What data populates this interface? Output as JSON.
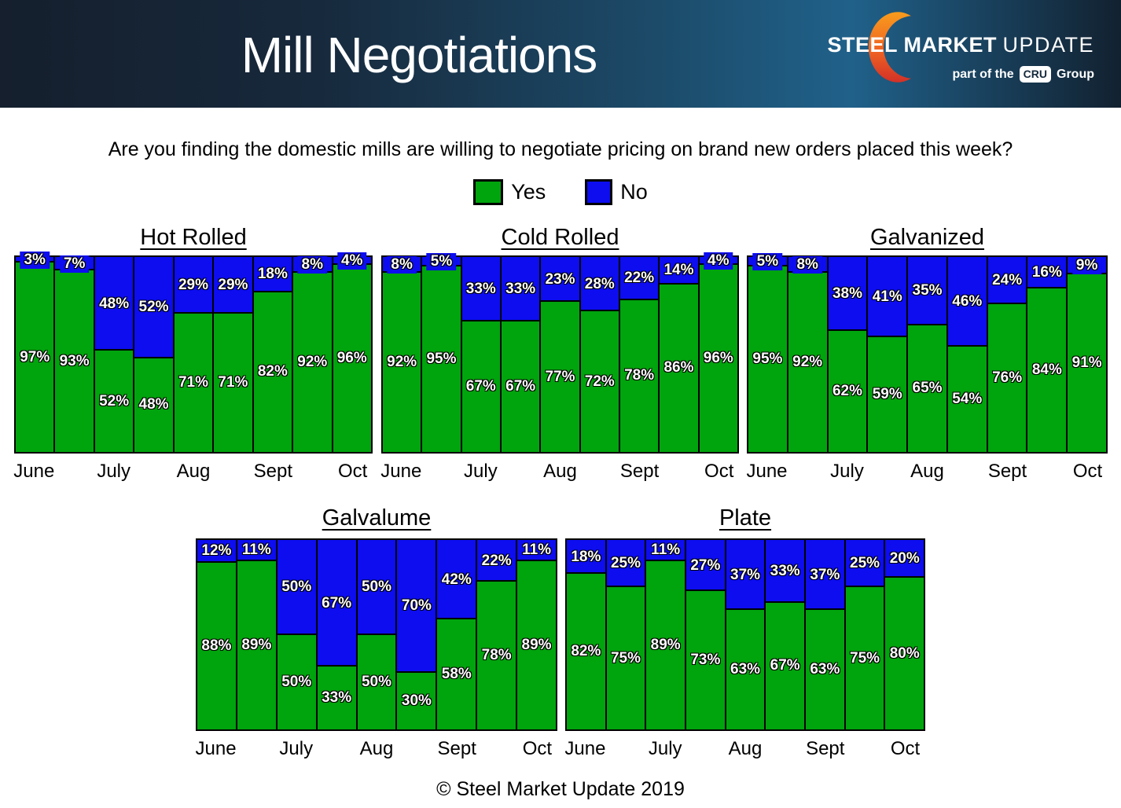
{
  "header": {
    "title": "Mill Negotiations",
    "logo": {
      "name_bold": "STEEL MARKET",
      "name_light": "UPDATE",
      "tagline_pre": "part of the",
      "tagline_badge": "CRU",
      "tagline_post": "Group"
    }
  },
  "question": "Are you finding the domestic mills are willing to negotiate pricing on brand new orders placed this week?",
  "legend": [
    {
      "label": "Yes",
      "color": "#00a40d"
    },
    {
      "label": "No",
      "color": "#0d0df0"
    }
  ],
  "colors": {
    "yes": "#00a40d",
    "no": "#0d0df0",
    "bar_border": "#000000",
    "label_text": "#ffffff",
    "banner_dark": "#151f2d",
    "banner_mid": "#1c4a68",
    "banner_light": "#20618a",
    "crescent_top": "#f89c1d",
    "crescent_bottom": "#d23127"
  },
  "footer": "© Steel Market Update 2019",
  "chart_data": [
    {
      "type": "bar",
      "stacked": true,
      "title": "Hot Rolled",
      "unit": "%",
      "ylim": [
        0,
        100
      ],
      "weeks": 9,
      "month_ticks": [
        "June",
        "July",
        "Aug",
        "Sept",
        "Oct"
      ],
      "month_positions": [
        1,
        3,
        5,
        7,
        9
      ],
      "series": [
        {
          "name": "Yes",
          "values": [
            97,
            93,
            52,
            48,
            71,
            71,
            82,
            92,
            96
          ]
        },
        {
          "name": "No",
          "values": [
            3,
            7,
            48,
            52,
            29,
            29,
            18,
            8,
            4
          ]
        }
      ]
    },
    {
      "type": "bar",
      "stacked": true,
      "title": "Cold Rolled",
      "unit": "%",
      "ylim": [
        0,
        100
      ],
      "weeks": 9,
      "month_ticks": [
        "June",
        "July",
        "Aug",
        "Sept",
        "Oct"
      ],
      "month_positions": [
        1,
        3,
        5,
        7,
        9
      ],
      "series": [
        {
          "name": "Yes",
          "values": [
            92,
            95,
            67,
            67,
            77,
            72,
            78,
            86,
            96
          ]
        },
        {
          "name": "No",
          "values": [
            8,
            5,
            33,
            33,
            23,
            28,
            22,
            14,
            4
          ]
        }
      ]
    },
    {
      "type": "bar",
      "stacked": true,
      "title": "Galvanized",
      "unit": "%",
      "ylim": [
        0,
        100
      ],
      "weeks": 9,
      "month_ticks": [
        "June",
        "July",
        "Aug",
        "Sept",
        "Oct"
      ],
      "month_positions": [
        1,
        3,
        5,
        7,
        9
      ],
      "series": [
        {
          "name": "Yes",
          "values": [
            95,
            92,
            62,
            59,
            65,
            54,
            76,
            84,
            91
          ]
        },
        {
          "name": "No",
          "values": [
            5,
            8,
            38,
            41,
            35,
            46,
            24,
            16,
            9
          ]
        }
      ]
    },
    {
      "type": "bar",
      "stacked": true,
      "title": "Galvalume",
      "unit": "%",
      "ylim": [
        0,
        100
      ],
      "weeks": 9,
      "month_ticks": [
        "June",
        "July",
        "Aug",
        "Sept",
        "Oct"
      ],
      "month_positions": [
        1,
        3,
        5,
        7,
        9
      ],
      "series": [
        {
          "name": "Yes",
          "values": [
            88,
            89,
            50,
            33,
            50,
            30,
            58,
            78,
            89
          ]
        },
        {
          "name": "No",
          "values": [
            12,
            11,
            50,
            67,
            50,
            70,
            42,
            22,
            11
          ]
        }
      ]
    },
    {
      "type": "bar",
      "stacked": true,
      "title": "Plate",
      "unit": "%",
      "ylim": [
        0,
        100
      ],
      "weeks": 9,
      "month_ticks": [
        "June",
        "July",
        "Aug",
        "Sept",
        "Oct"
      ],
      "month_positions": [
        1,
        3,
        5,
        7,
        9
      ],
      "series": [
        {
          "name": "Yes",
          "values": [
            82,
            75,
            89,
            73,
            63,
            67,
            63,
            75,
            80
          ]
        },
        {
          "name": "No",
          "values": [
            18,
            25,
            11,
            27,
            37,
            33,
            37,
            25,
            20
          ]
        }
      ]
    }
  ]
}
